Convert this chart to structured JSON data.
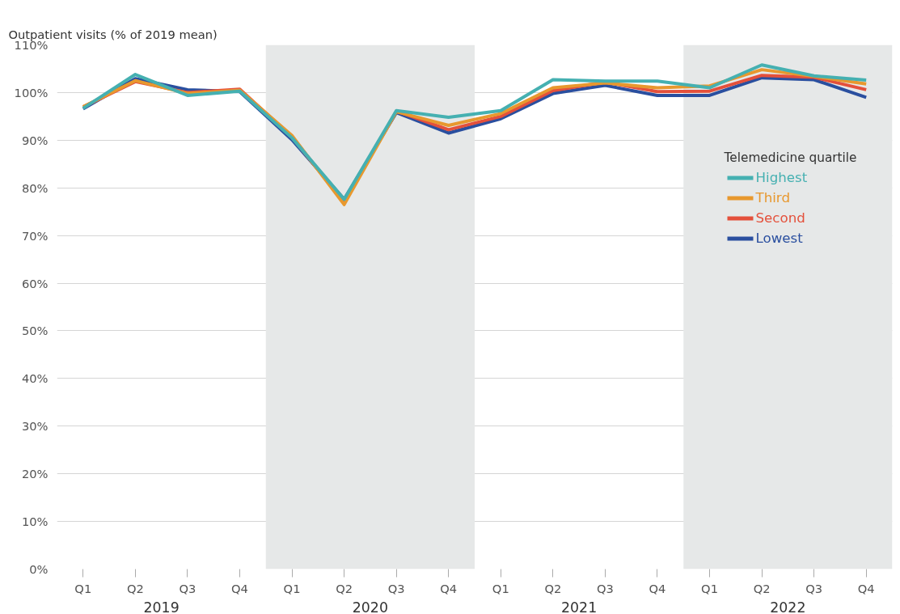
{
  "chart_data": {
    "type": "line",
    "ylabel": "Outpatient visits (% of 2019 mean)",
    "legend_title": "Telemedicine quartile",
    "categories": [
      "Q1",
      "Q2",
      "Q3",
      "Q4",
      "Q1",
      "Q2",
      "Q3",
      "Q4",
      "Q1",
      "Q2",
      "Q3",
      "Q4",
      "Q1",
      "Q2",
      "Q3",
      "Q4"
    ],
    "series": [
      {
        "name": "Highest",
        "color": "#45b0b1",
        "values": [
          96.7,
          103.8,
          99.4,
          100.3,
          90.5,
          77.6,
          96.2,
          94.8,
          96.2,
          102.7,
          102.4,
          102.4,
          101.0,
          105.8,
          103.5,
          102.6
        ]
      },
      {
        "name": "Third",
        "color": "#e8982e",
        "values": [
          97.0,
          102.5,
          99.8,
          100.5,
          91.0,
          76.5,
          96.0,
          93.1,
          95.6,
          101.0,
          102.0,
          101.0,
          101.4,
          104.8,
          103.4,
          101.8
        ]
      },
      {
        "name": "Second",
        "color": "#e4503b",
        "values": [
          97.0,
          102.3,
          100.0,
          100.7,
          90.7,
          77.0,
          96.1,
          92.2,
          95.0,
          100.4,
          102.2,
          100.2,
          100.3,
          103.6,
          103.2,
          100.6
        ]
      },
      {
        "name": "Lowest",
        "color": "#2a4f9f",
        "values": [
          96.6,
          102.9,
          100.6,
          100.2,
          90.1,
          77.6,
          95.8,
          91.5,
          94.5,
          99.8,
          101.5,
          99.4,
          99.4,
          103.1,
          102.7,
          99.0
        ]
      }
    ],
    "ylim": [
      0,
      110
    ],
    "yticks": [
      {
        "value": 0,
        "label": "0%"
      },
      {
        "value": 10,
        "label": "10%"
      },
      {
        "value": 20,
        "label": "20%"
      },
      {
        "value": 30,
        "label": "30%"
      },
      {
        "value": 40,
        "label": "40%"
      },
      {
        "value": 50,
        "label": "50%"
      },
      {
        "value": 60,
        "label": "60%"
      },
      {
        "value": 70,
        "label": "70%"
      },
      {
        "value": 80,
        "label": "80%"
      },
      {
        "value": 90,
        "label": "90%"
      },
      {
        "value": 100,
        "label": "100%"
      },
      {
        "value": 110,
        "label": "110%"
      }
    ],
    "annotations": [
      "2019",
      "2020",
      "2021",
      "2022"
    ],
    "grid": "y",
    "legend": "right",
    "marker": "none",
    "line_style": "solid"
  }
}
